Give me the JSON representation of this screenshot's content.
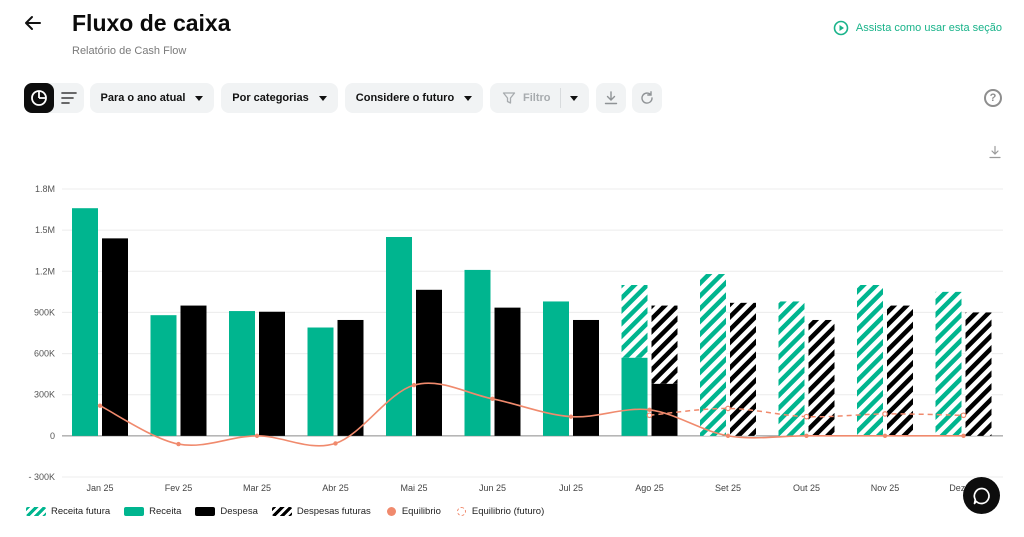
{
  "header": {
    "title": "Fluxo de caixa",
    "subtitle": "Relatório de Cash Flow",
    "help_link": "Assista como usar esta seção"
  },
  "toolbar": {
    "period": "Para o ano atual",
    "grouping": "Por categorias",
    "future": "Considere o futuro",
    "filter": "Filtro"
  },
  "icons": {
    "back": "arrow-left-icon",
    "play": "play-circle-icon",
    "clock": "pie-clock-icon",
    "list": "list-icon",
    "filter": "funnel-icon",
    "download": "download-icon",
    "refresh": "refresh-icon",
    "help": "question-circle-icon",
    "chat": "chat-bubble-icon"
  },
  "colors": {
    "receita": "#00b58f",
    "despesa": "#000000",
    "equilibrio": "#f08a6d",
    "accent": "#19b38a"
  },
  "chart_data": {
    "type": "bar",
    "categories": [
      "Jan 25",
      "Fev 25",
      "Mar 25",
      "Abr 25",
      "Mai 25",
      "Jun 25",
      "Jul 25",
      "Ago 25",
      "Set 25",
      "Out 25",
      "Nov 25",
      "Dez 25"
    ],
    "yticks": [
      "1.8M",
      "1.5M",
      "1.2M",
      "900K",
      "600K",
      "300K",
      "0",
      "- 300K"
    ],
    "ylim": [
      -300000,
      1800000
    ],
    "series": [
      {
        "name": "Receita",
        "values": [
          1660000,
          880000,
          910000,
          790000,
          1450000,
          1210000,
          980000,
          570000,
          0,
          0,
          0,
          0
        ]
      },
      {
        "name": "Receita futura",
        "values": [
          0,
          0,
          0,
          0,
          0,
          0,
          0,
          530000,
          1180000,
          980000,
          1100000,
          1050000
        ]
      },
      {
        "name": "Despesa",
        "values": [
          1440000,
          950000,
          905000,
          845000,
          1065000,
          935000,
          845000,
          380000,
          0,
          0,
          0,
          0
        ]
      },
      {
        "name": "Despesas futuras",
        "values": [
          0,
          0,
          0,
          0,
          0,
          0,
          0,
          570000,
          970000,
          845000,
          950000,
          900000
        ]
      },
      {
        "name": "Equilíbrio",
        "values": [
          220000,
          -60000,
          0,
          -55000,
          370000,
          270000,
          140000,
          190000,
          0,
          0,
          0,
          0
        ]
      },
      {
        "name": "Equilíbrio (futuro)",
        "values": [
          null,
          null,
          null,
          null,
          null,
          null,
          null,
          150000,
          200000,
          140000,
          160000,
          150000
        ]
      }
    ],
    "legend": [
      "Receita futura",
      "Receita",
      "Despesa",
      "Despesas futuras",
      "Equilibrio",
      "Equilibrio (futuro)"
    ],
    "legend_position": "bottom-left",
    "grid": true
  }
}
